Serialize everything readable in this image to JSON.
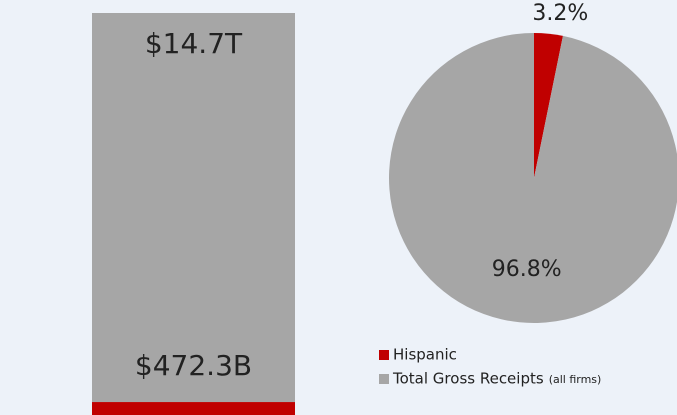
{
  "chart_data": [
    {
      "type": "bar",
      "series": [
        {
          "name": "Total Gross Receipts",
          "color": "#a6a6a6",
          "values": [
            14700
          ],
          "value_labels": [
            "$14.7T"
          ]
        },
        {
          "name": "Hispanic",
          "color": "#c00000",
          "values": [
            472.3
          ],
          "value_labels": [
            "$472.3B"
          ]
        }
      ]
    },
    {
      "type": "pie",
      "categories": [
        "Hispanic",
        "Total Gross Receipts"
      ],
      "legend_note": "(all firms)",
      "values": [
        3.2,
        96.8
      ],
      "value_labels": [
        "3.2%",
        "96.8%"
      ],
      "colors": [
        "#c00000",
        "#a6a6a6"
      ],
      "legend": "bottom"
    }
  ]
}
